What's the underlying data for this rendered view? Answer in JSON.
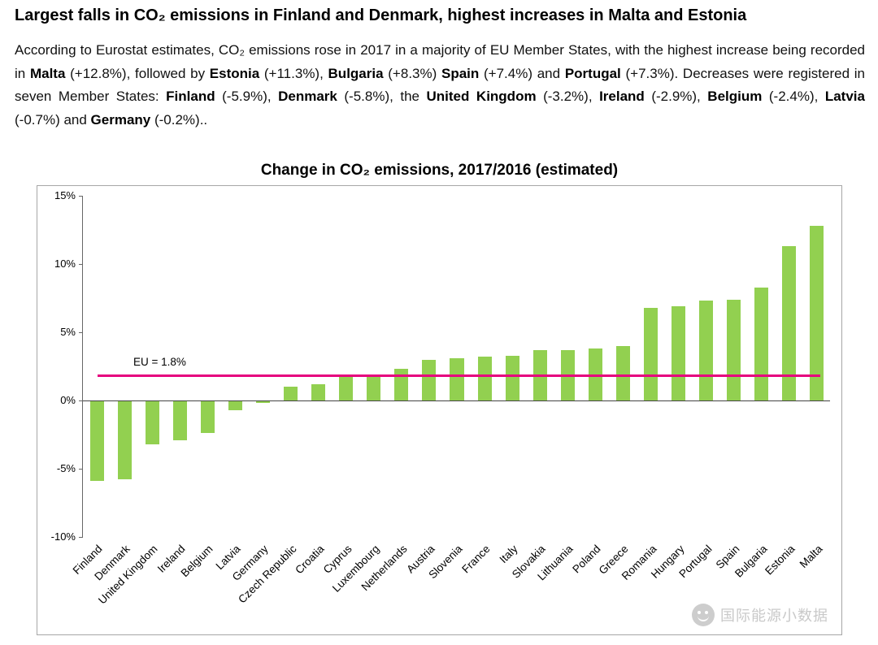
{
  "page": {
    "headline": "Largest falls in CO₂ emissions in Finland and Denmark, highest increases in Malta and Estonia"
  },
  "paragraph": {
    "segments": [
      {
        "text": "According to Eurostat estimates, CO₂ emissions rose in 2017 in a majority of EU Member States, with the highest increase being recorded in ",
        "bold": false
      },
      {
        "text": "Malta",
        "bold": true
      },
      {
        "text": " (+12.8%), followed by ",
        "bold": false
      },
      {
        "text": "Estonia",
        "bold": true
      },
      {
        "text": " (+11.3%), ",
        "bold": false
      },
      {
        "text": "Bulgaria",
        "bold": true
      },
      {
        "text": " (+8.3%) ",
        "bold": false
      },
      {
        "text": "Spain",
        "bold": true
      },
      {
        "text": " (+7.4%) and ",
        "bold": false
      },
      {
        "text": "Portugal",
        "bold": true
      },
      {
        "text": " (+7.3%). Decreases were registered in seven Member States: ",
        "bold": false
      },
      {
        "text": "Finland",
        "bold": true
      },
      {
        "text": " (-5.9%), ",
        "bold": false
      },
      {
        "text": "Denmark",
        "bold": true
      },
      {
        "text": " (-5.8%), the ",
        "bold": false
      },
      {
        "text": "United Kingdom",
        "bold": true
      },
      {
        "text": " (-3.2%), ",
        "bold": false
      },
      {
        "text": "Ireland",
        "bold": true
      },
      {
        "text": " (-2.9%), ",
        "bold": false
      },
      {
        "text": "Belgium",
        "bold": true
      },
      {
        "text": " (-2.4%), ",
        "bold": false
      },
      {
        "text": "Latvia",
        "bold": true
      },
      {
        "text": " (-0.7%) and ",
        "bold": false
      },
      {
        "text": "Germany",
        "bold": true
      },
      {
        "text": " (-0.2%)..",
        "bold": false
      }
    ]
  },
  "chart_data": {
    "type": "bar",
    "title": "Change in CO₂ emissions, 2017/2016 (estimated)",
    "categories": [
      "Finland",
      "Denmark",
      "United Kingdom",
      "Ireland",
      "Belgium",
      "Latvia",
      "Germany",
      "Czech Republic",
      "Croatia",
      "Cyprus",
      "Luxembourg",
      "Netherlands",
      "Austria",
      "Slovenia",
      "France",
      "Italy",
      "Slovakia",
      "Lithuania",
      "Poland",
      "Greece",
      "Romania",
      "Hungary",
      "Portugal",
      "Spain",
      "Bulgaria",
      "Estonia",
      "Malta"
    ],
    "values": [
      -5.9,
      -5.8,
      -3.2,
      -2.9,
      -2.4,
      -0.7,
      -0.2,
      1.0,
      1.2,
      1.8,
      1.8,
      2.3,
      3.0,
      3.1,
      3.2,
      3.3,
      3.7,
      3.7,
      3.8,
      4.0,
      6.8,
      6.9,
      7.3,
      7.4,
      8.3,
      11.3,
      12.8
    ],
    "xlabel": "",
    "ylabel": "",
    "ylim": [
      -10,
      15
    ],
    "yticks": [
      15,
      10,
      5,
      0,
      -5,
      -10
    ],
    "ytick_labels": [
      "15%",
      "10%",
      "5%",
      "0%",
      "-5%",
      "-10%"
    ],
    "grid": false,
    "legend_position": "none",
    "bar_color": "#92D050",
    "eu_line": {
      "value": 1.8,
      "label": "EU = 1.8%",
      "color": "#E6007E"
    }
  },
  "watermark": {
    "text": "国际能源小数据"
  }
}
